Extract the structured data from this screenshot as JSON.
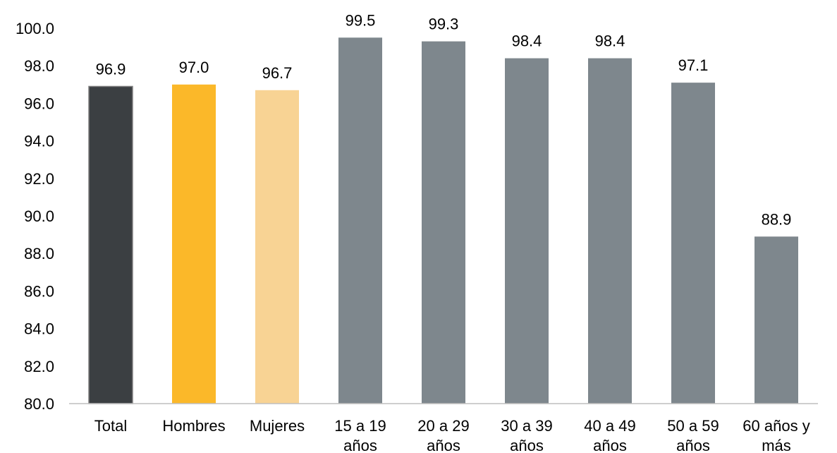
{
  "chart_data": {
    "type": "bar",
    "categories": [
      [
        "Total"
      ],
      [
        "Hombres"
      ],
      [
        "Mujeres"
      ],
      [
        "15 a 19",
        "años"
      ],
      [
        "20 a 29",
        "años"
      ],
      [
        "30 a 39",
        "años"
      ],
      [
        "40 a 49",
        "años"
      ],
      [
        "50 a 59",
        "años"
      ],
      [
        "60 años y",
        "más"
      ]
    ],
    "values": [
      96.9,
      97.0,
      96.7,
      99.5,
      99.3,
      98.4,
      98.4,
      97.1,
      88.9
    ],
    "value_labels": [
      "96.9",
      "97.0",
      "96.7",
      "99.5",
      "99.3",
      "98.4",
      "98.4",
      "97.1",
      "88.9"
    ],
    "bar_colors": [
      "#3b3f42",
      "#fbb829",
      "#f8d394",
      "#7e878d",
      "#7e878d",
      "#7e878d",
      "#7e878d",
      "#7e878d",
      "#7e878d"
    ],
    "ylim": [
      80,
      100
    ],
    "yticks": [
      "80.0",
      "82.0",
      "84.0",
      "86.0",
      "88.0",
      "90.0",
      "92.0",
      "94.0",
      "96.0",
      "98.0",
      "100.0"
    ],
    "title": "",
    "xlabel": "",
    "ylabel": "",
    "grid": false,
    "legend": false
  }
}
